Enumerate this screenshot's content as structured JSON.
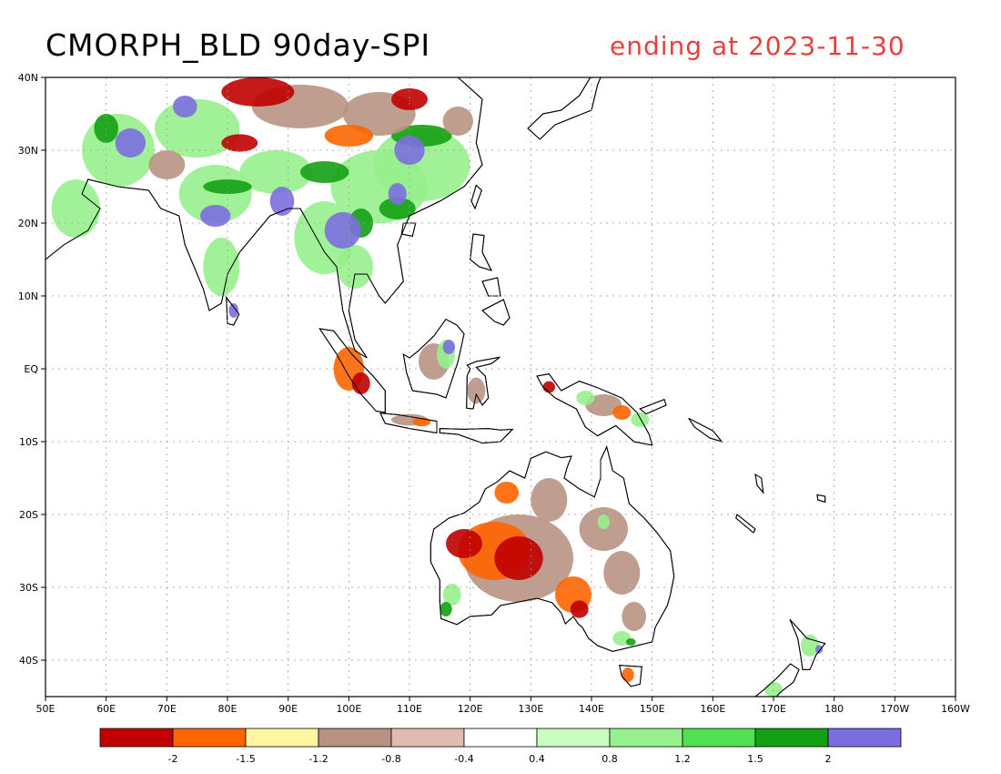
{
  "title": "CMORPH_BLD 90day-SPI",
  "subtitle": "ending at 2023-11-30",
  "map": {
    "lon_range": [
      50,
      200
    ],
    "lat_range": [
      -45,
      40
    ],
    "lat_ticks": [
      {
        "value": 40,
        "label": "40N"
      },
      {
        "value": 30,
        "label": "30N"
      },
      {
        "value": 20,
        "label": "20N"
      },
      {
        "value": 10,
        "label": "10N"
      },
      {
        "value": 0,
        "label": "EQ"
      },
      {
        "value": -10,
        "label": "10S"
      },
      {
        "value": -20,
        "label": "20S"
      },
      {
        "value": -30,
        "label": "30S"
      },
      {
        "value": -40,
        "label": "40S"
      }
    ],
    "lon_ticks": [
      {
        "value": 50,
        "label": "50E"
      },
      {
        "value": 60,
        "label": "60E"
      },
      {
        "value": 70,
        "label": "70E"
      },
      {
        "value": 80,
        "label": "80E"
      },
      {
        "value": 90,
        "label": "90E"
      },
      {
        "value": 100,
        "label": "100E"
      },
      {
        "value": 110,
        "label": "110E"
      },
      {
        "value": 120,
        "label": "120E"
      },
      {
        "value": 130,
        "label": "130E"
      },
      {
        "value": 140,
        "label": "140E"
      },
      {
        "value": 150,
        "label": "150E"
      },
      {
        "value": 160,
        "label": "160E"
      },
      {
        "value": 170,
        "label": "170E"
      },
      {
        "value": 180,
        "label": "180"
      },
      {
        "value": 190,
        "label": "170W"
      },
      {
        "value": 200,
        "label": "160W"
      }
    ]
  },
  "legend": {
    "colors": [
      "#c00000",
      "#ff6400",
      "#fff5a0",
      "#b89384",
      "#e0bcb0",
      "#ffffff",
      "#c8ffc0",
      "#96f08c",
      "#50e050",
      "#14a014",
      "#7b6ee0"
    ],
    "breaks": [
      "-2",
      "-1.5",
      "-1.2",
      "-0.8",
      "-0.4",
      "0.4",
      "0.8",
      "1.2",
      "1.5",
      "2"
    ]
  },
  "palette": {
    "dry_extreme": "#c00000",
    "dry_severe": "#ff6400",
    "dry_moderate": "#b89384",
    "normal": "#ffffff",
    "wet_moderate": "#96f08c",
    "wet_severe": "#14a014",
    "wet_extreme": "#7b6ee0"
  }
}
